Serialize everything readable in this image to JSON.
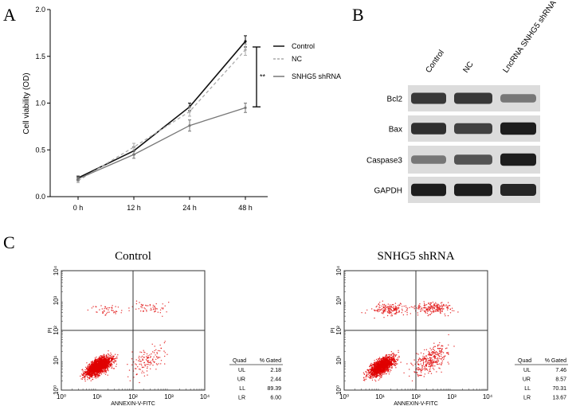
{
  "panels": {
    "a": "A",
    "b": "B",
    "c": "C"
  },
  "chart_data": [
    {
      "type": "line",
      "panel": "A",
      "ylabel": "Cell viability (OD)",
      "xlabel": "",
      "categories": [
        "0 h",
        "12 h",
        "24 h",
        "48 h"
      ],
      "ylim": [
        0,
        2.0
      ],
      "yticks": [
        "0.0",
        "0.5",
        "1.0",
        "1.5",
        "2.0"
      ],
      "legend_position": "right",
      "significance": "**",
      "series": [
        {
          "name": "Control",
          "values": [
            0.2,
            0.49,
            0.96,
            1.66
          ],
          "errors": [
            0.02,
            0.04,
            0.04,
            0.06
          ],
          "color": "#111111",
          "style": "solid"
        },
        {
          "name": "NC",
          "values": [
            0.17,
            0.53,
            0.91,
            1.57
          ],
          "errors": [
            0.02,
            0.04,
            0.05,
            0.06
          ],
          "color": "#aaaaaa",
          "style": "dashed"
        },
        {
          "name": "SNHG5 shRNA",
          "values": [
            0.19,
            0.45,
            0.76,
            0.95
          ],
          "errors": [
            0.02,
            0.04,
            0.06,
            0.05
          ],
          "color": "#777777",
          "style": "solid"
        }
      ]
    }
  ],
  "western_blot": {
    "panel": "B",
    "lanes": [
      "Control",
      "NC",
      "LncRNA SNHG5 shRNA"
    ],
    "rows": [
      {
        "label": "Bcl2",
        "intensity": [
          0.8,
          0.8,
          0.45
        ]
      },
      {
        "label": "Bax",
        "intensity": [
          0.85,
          0.75,
          0.95
        ]
      },
      {
        "label": "Caspase3",
        "intensity": [
          0.45,
          0.65,
          0.95
        ]
      },
      {
        "label": "GAPDH",
        "intensity": [
          0.95,
          0.95,
          0.9
        ]
      }
    ]
  },
  "flow": {
    "panel": "C",
    "xlabel": "ANNEXIN-V-FITC",
    "ylabel": "PI",
    "ticks": [
      "10⁰",
      "10¹",
      "10²",
      "10³",
      "10⁴"
    ],
    "table_headers": [
      "Quad",
      "% Gated"
    ],
    "dot_color": "#e00000",
    "plots": [
      {
        "title": "Control",
        "quadrants": [
          {
            "quad": "UL",
            "gated": "2.18"
          },
          {
            "quad": "UR",
            "gated": "2.44"
          },
          {
            "quad": "LL",
            "gated": "89.39"
          },
          {
            "quad": "LR",
            "gated": "6.00"
          }
        ]
      },
      {
        "title": "SNHG5 shRNA",
        "quadrants": [
          {
            "quad": "UL",
            "gated": "7.46"
          },
          {
            "quad": "UR",
            "gated": "8.57"
          },
          {
            "quad": "LL",
            "gated": "70.31"
          },
          {
            "quad": "LR",
            "gated": "13.67"
          }
        ]
      }
    ]
  }
}
